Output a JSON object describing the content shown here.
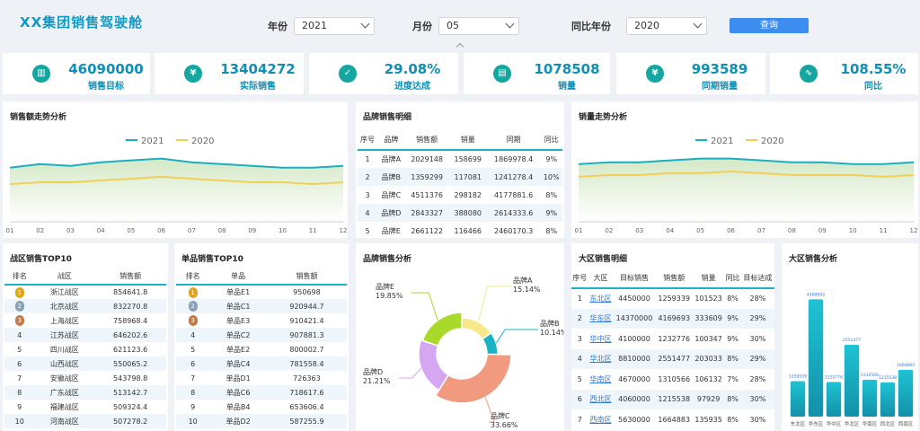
{
  "header": {
    "title": "XX集团销售驾驶舱",
    "year_label": "年份",
    "year_value": "2021",
    "month_label": "月份",
    "month_value": "05",
    "cmp_year_label": "同比年份",
    "cmp_year_value": "2020",
    "query_button": "查询"
  },
  "kpis": [
    {
      "value": "46090000",
      "label": "销售目标",
      "icon": "bar-chart-icon"
    },
    {
      "value": "13404272",
      "label": "实际销售",
      "icon": "yen-icon"
    },
    {
      "value": "29.08%",
      "label": "进度达成",
      "icon": "check-icon"
    },
    {
      "value": "1078508",
      "label": "销量",
      "icon": "document-icon"
    },
    {
      "value": "993589",
      "label": "同期销量",
      "icon": "yen-hexagon-icon"
    },
    {
      "value": "108.55%",
      "label": "同比",
      "icon": "pulse-icon"
    }
  ],
  "sales_trend": {
    "title": "销售额走势分析",
    "chart_data": {
      "type": "area",
      "x": [
        "01",
        "02",
        "03",
        "04",
        "05",
        "06",
        "07",
        "08",
        "09",
        "10",
        "11",
        "12"
      ],
      "series": [
        {
          "name": "2021",
          "values": [
            72,
            74,
            73,
            75,
            76,
            77,
            75,
            74,
            73,
            72,
            72,
            73
          ],
          "color": "#1aaebf"
        },
        {
          "name": "2020",
          "values": [
            63,
            64,
            64,
            65,
            66,
            67,
            66,
            65,
            64,
            64,
            63,
            64
          ],
          "color": "#f0cf57"
        }
      ],
      "ylim": [
        0,
        100
      ],
      "grid": false,
      "legend": "top-center"
    }
  },
  "brand_detail": {
    "title": "品牌销售明细",
    "columns": [
      "序号",
      "品牌",
      "销售额",
      "销量",
      "同期",
      "同比"
    ],
    "rows": [
      [
        "1",
        "品牌A",
        "2029148",
        "158699",
        "1869978.4",
        "9%"
      ],
      [
        "2",
        "品牌B",
        "1359299",
        "117081",
        "1241278.4",
        "10%"
      ],
      [
        "3",
        "品牌C",
        "4511376",
        "298182",
        "4177881.6",
        "8%"
      ],
      [
        "4",
        "品牌D",
        "2843327",
        "388080",
        "2614333.6",
        "9%"
      ],
      [
        "5",
        "品牌E",
        "2661122",
        "116466",
        "2460170.3",
        "8%"
      ]
    ]
  },
  "volume_trend": {
    "title": "销量走势分析",
    "chart_data": {
      "type": "area",
      "x": [
        "01",
        "02",
        "03",
        "04",
        "05",
        "06",
        "07",
        "08",
        "09",
        "10",
        "11",
        "12"
      ],
      "series": [
        {
          "name": "2021",
          "values": [
            74,
            75,
            75,
            76,
            77,
            77,
            76,
            75,
            75,
            74,
            74,
            75
          ],
          "color": "#1aaebf"
        },
        {
          "name": "2020",
          "values": [
            67,
            68,
            68,
            69,
            69,
            70,
            69,
            68,
            68,
            68,
            67,
            68
          ],
          "color": "#f0cf57"
        }
      ],
      "ylim": [
        0,
        100
      ],
      "grid": false,
      "legend": "top-center"
    }
  },
  "zone_top10": {
    "title": "战区销售TOP10",
    "columns": [
      "排名",
      "战区",
      "销售额"
    ],
    "rows": [
      [
        "1",
        "浙江战区",
        "854641.8"
      ],
      [
        "2",
        "北京战区",
        "832270.8"
      ],
      [
        "3",
        "上海战区",
        "758968.4"
      ],
      [
        "4",
        "江苏战区",
        "646202.6"
      ],
      [
        "5",
        "四川战区",
        "621123.6"
      ],
      [
        "6",
        "山西战区",
        "550065.2"
      ],
      [
        "7",
        "安徽战区",
        "543798.8"
      ],
      [
        "8",
        "广东战区",
        "513142.7"
      ],
      [
        "9",
        "福建战区",
        "509324.4"
      ],
      [
        "10",
        "河南战区",
        "507278.2"
      ]
    ]
  },
  "product_top10": {
    "title": "单品销售TOP10",
    "columns": [
      "排名",
      "单品",
      "销售额"
    ],
    "rows": [
      [
        "1",
        "单品E1",
        "950698"
      ],
      [
        "2",
        "单品C1",
        "920944.7"
      ],
      [
        "3",
        "单品E3",
        "910421.4"
      ],
      [
        "4",
        "单品C2",
        "907881.3"
      ],
      [
        "5",
        "单品E2",
        "800002.7"
      ],
      [
        "6",
        "单品C4",
        "781558.4"
      ],
      [
        "7",
        "单品D1",
        "726363"
      ],
      [
        "8",
        "单品C6",
        "718617.6"
      ],
      [
        "9",
        "单品B4",
        "653606.4"
      ],
      [
        "10",
        "单品D2",
        "587255.9"
      ]
    ]
  },
  "brand_share": {
    "title": "品牌销售分析",
    "chart_data": {
      "type": "pie",
      "donut": true,
      "slices": [
        {
          "name": "品牌A",
          "pct": "15.14%",
          "value": 15.14,
          "color": "#f7e88a"
        },
        {
          "name": "品牌B",
          "pct": "10.14%",
          "value": 10.14,
          "color": "#19b3c4"
        },
        {
          "name": "品牌C",
          "pct": "33.66%",
          "value": 33.66,
          "color": "#f29a80"
        },
        {
          "name": "品牌D",
          "pct": "21.21%",
          "value": 21.21,
          "color": "#d5a6f2"
        },
        {
          "name": "品牌E",
          "pct": "19.85%",
          "value": 19.85,
          "color": "#a9d92b"
        }
      ]
    }
  },
  "region_detail": {
    "title": "大区销售明细",
    "columns": [
      "序号",
      "大区",
      "目标销售",
      "销售额",
      "销量",
      "同比",
      "目标达成"
    ],
    "rows": [
      [
        "1",
        "东北区",
        "4450000",
        "1259339",
        "101523",
        "8%",
        "28%"
      ],
      [
        "2",
        "华东区",
        "14370000",
        "4169693",
        "333609",
        "9%",
        "29%"
      ],
      [
        "3",
        "华中区",
        "4100000",
        "1232776",
        "100347",
        "9%",
        "30%"
      ],
      [
        "4",
        "华北区",
        "8810000",
        "2551477",
        "203033",
        "8%",
        "29%"
      ],
      [
        "5",
        "华南区",
        "4670000",
        "1310566",
        "106132",
        "7%",
        "28%"
      ],
      [
        "6",
        "西北区",
        "4060000",
        "1215538",
        "97929",
        "8%",
        "30%"
      ],
      [
        "7",
        "西南区",
        "5630000",
        "1664883",
        "135935",
        "8%",
        "30%"
      ]
    ]
  },
  "region_analysis": {
    "title": "大区销售分析",
    "chart_data": {
      "type": "bar",
      "categories": [
        "东北区",
        "华东区",
        "华中区",
        "华北区",
        "华南区",
        "西北区",
        "西南区"
      ],
      "values": [
        1259339,
        4169693,
        1232776,
        2551477,
        1310566,
        1215538,
        1664883
      ],
      "labels": [
        "1259339",
        "4169693",
        "1232776",
        "2551477",
        "1310566",
        "1215538",
        "1664883"
      ],
      "ylim": [
        0,
        4500000
      ],
      "color": "#19b3c4"
    }
  }
}
